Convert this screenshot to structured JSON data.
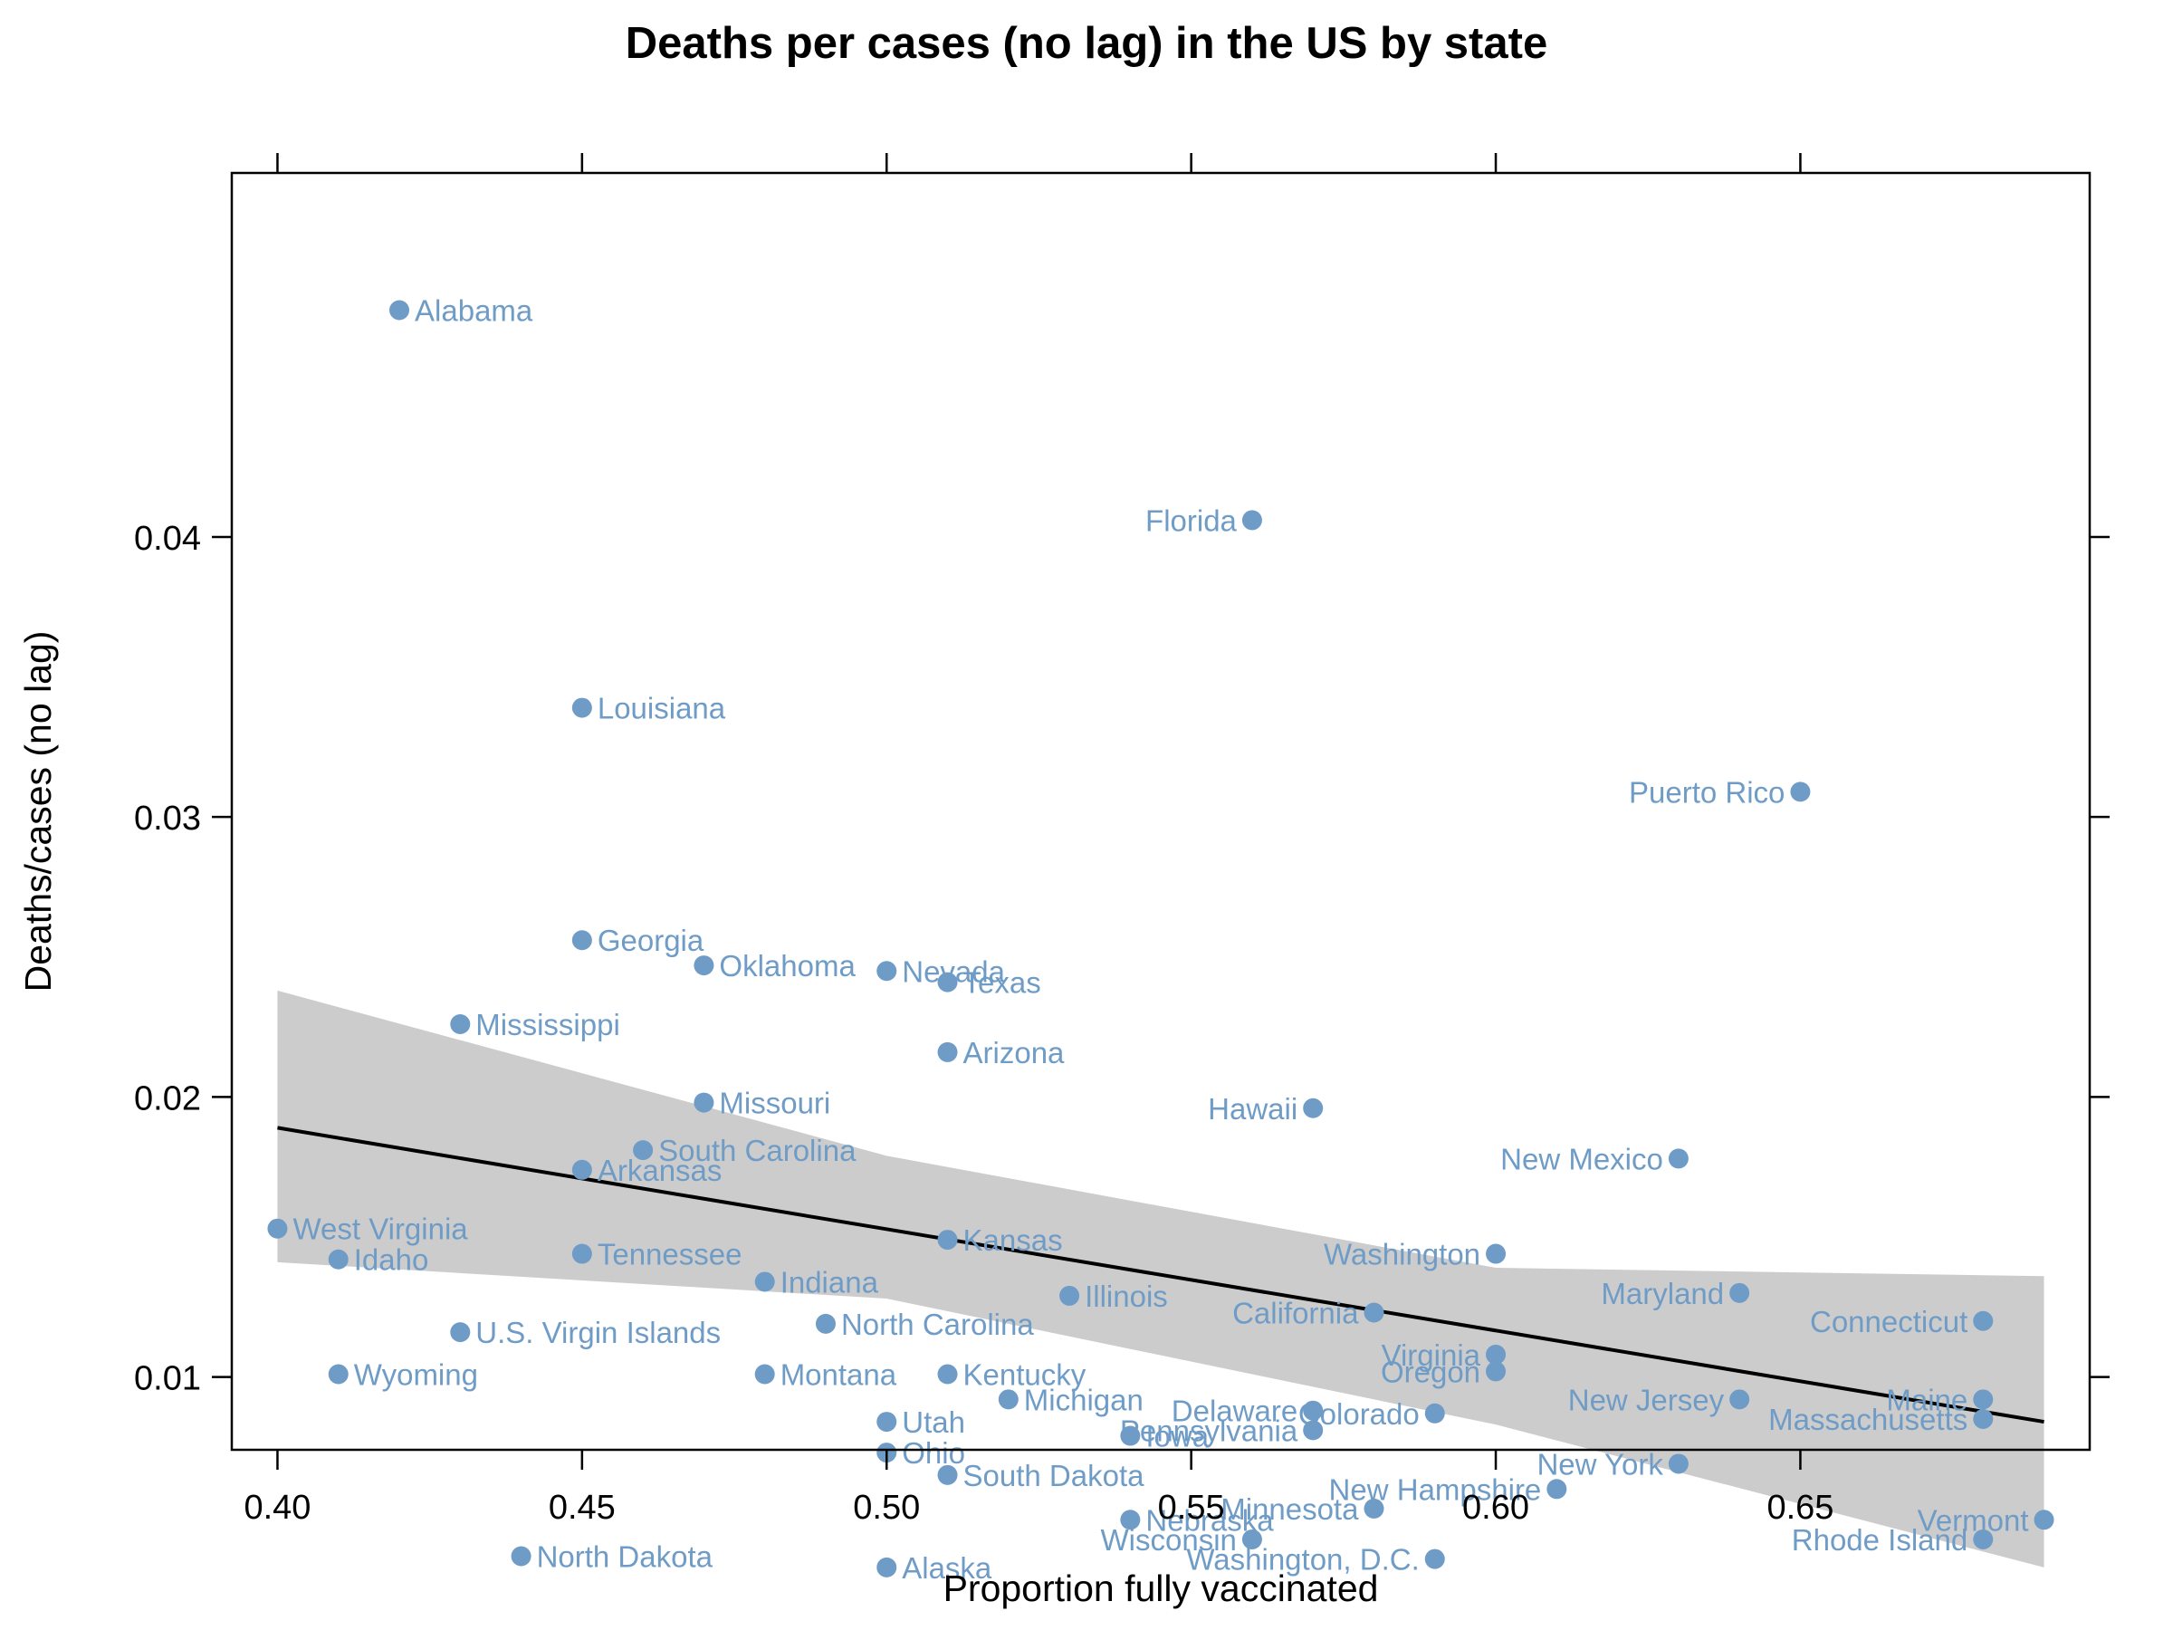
{
  "chart_data": {
    "type": "scatter",
    "title": "Deaths per cases (no lag) in the US by state",
    "xlabel": "Proportion fully vaccinated",
    "ylabel": "Deaths/cases (no lag)",
    "xlim": [
      0.3925,
      0.6975
    ],
    "ylim": [
      0.0074,
      0.053
    ],
    "x_ticks": [
      0.4,
      0.45,
      0.5,
      0.55,
      0.6,
      0.65
    ],
    "x_tick_labels": [
      "0.40",
      "0.45",
      "0.50",
      "0.55",
      "0.60",
      "0.65"
    ],
    "y_ticks": [
      0.01,
      0.02,
      0.03,
      0.04
    ],
    "y_tick_labels": [
      "0.01",
      "0.02",
      "0.03",
      "0.04"
    ],
    "grid": false,
    "colors": {
      "points": "#6f9cc6",
      "band": "#cccccc",
      "line": "#000000"
    },
    "points": [
      {
        "label": "Alabama",
        "x": 0.42,
        "y": 0.0481,
        "side": "right"
      },
      {
        "label": "Florida",
        "x": 0.56,
        "y": 0.0406,
        "side": "left"
      },
      {
        "label": "Louisiana",
        "x": 0.45,
        "y": 0.0339,
        "side": "right"
      },
      {
        "label": "Puerto Rico",
        "x": 0.65,
        "y": 0.0309,
        "side": "left"
      },
      {
        "label": "Georgia",
        "x": 0.45,
        "y": 0.0256,
        "side": "right"
      },
      {
        "label": "Oklahoma",
        "x": 0.47,
        "y": 0.0247,
        "side": "right"
      },
      {
        "label": "Nevada",
        "x": 0.5,
        "y": 0.0245,
        "side": "right"
      },
      {
        "label": "Texas",
        "x": 0.51,
        "y": 0.0241,
        "side": "right"
      },
      {
        "label": "Mississippi",
        "x": 0.43,
        "y": 0.0226,
        "side": "right"
      },
      {
        "label": "Arizona",
        "x": 0.51,
        "y": 0.0216,
        "side": "right"
      },
      {
        "label": "Missouri",
        "x": 0.47,
        "y": 0.0198,
        "side": "right"
      },
      {
        "label": "Hawaii",
        "x": 0.57,
        "y": 0.0196,
        "side": "left"
      },
      {
        "label": "South Carolina",
        "x": 0.46,
        "y": 0.0181,
        "side": "right"
      },
      {
        "label": "New Mexico",
        "x": 0.63,
        "y": 0.0178,
        "side": "left"
      },
      {
        "label": "Arkansas",
        "x": 0.45,
        "y": 0.0174,
        "side": "right"
      },
      {
        "label": "West Virginia",
        "x": 0.4,
        "y": 0.0153,
        "side": "right"
      },
      {
        "label": "Kansas",
        "x": 0.51,
        "y": 0.0149,
        "side": "right"
      },
      {
        "label": "Washington",
        "x": 0.6,
        "y": 0.0144,
        "side": "left"
      },
      {
        "label": "Tennessee",
        "x": 0.45,
        "y": 0.0144,
        "side": "right"
      },
      {
        "label": "Idaho",
        "x": 0.41,
        "y": 0.0142,
        "side": "right"
      },
      {
        "label": "Indiana",
        "x": 0.48,
        "y": 0.0134,
        "side": "right"
      },
      {
        "label": "Maryland",
        "x": 0.64,
        "y": 0.013,
        "side": "left"
      },
      {
        "label": "Illinois",
        "x": 0.53,
        "y": 0.0129,
        "side": "right"
      },
      {
        "label": "California",
        "x": 0.58,
        "y": 0.0123,
        "side": "left"
      },
      {
        "label": "Connecticut",
        "x": 0.68,
        "y": 0.012,
        "side": "left"
      },
      {
        "label": "North Carolina",
        "x": 0.49,
        "y": 0.0119,
        "side": "right"
      },
      {
        "label": "U.S. Virgin Islands",
        "x": 0.43,
        "y": 0.0116,
        "side": "right"
      },
      {
        "label": "Virginia",
        "x": 0.6,
        "y": 0.0108,
        "side": "left"
      },
      {
        "label": "Oregon",
        "x": 0.6,
        "y": 0.0102,
        "side": "left"
      },
      {
        "label": "Wyoming",
        "x": 0.41,
        "y": 0.0101,
        "side": "right"
      },
      {
        "label": "Montana",
        "x": 0.48,
        "y": 0.0101,
        "side": "right"
      },
      {
        "label": "Kentucky",
        "x": 0.51,
        "y": 0.0101,
        "side": "right"
      },
      {
        "label": "Michigan",
        "x": 0.52,
        "y": 0.0092,
        "side": "right"
      },
      {
        "label": "New Jersey",
        "x": 0.64,
        "y": 0.0092,
        "side": "left"
      },
      {
        "label": "Maine",
        "x": 0.68,
        "y": 0.0092,
        "side": "left"
      },
      {
        "label": "Delaware",
        "x": 0.57,
        "y": 0.0088,
        "side": "left"
      },
      {
        "label": "Colorado",
        "x": 0.59,
        "y": 0.0087,
        "side": "left"
      },
      {
        "label": "Massachusetts",
        "x": 0.68,
        "y": 0.0085,
        "side": "left"
      },
      {
        "label": "Utah",
        "x": 0.5,
        "y": 0.0084,
        "side": "right"
      },
      {
        "label": "Pennsylvania",
        "x": 0.57,
        "y": 0.0081,
        "side": "left"
      },
      {
        "label": "Iowa",
        "x": 0.54,
        "y": 0.0079,
        "side": "right"
      },
      {
        "label": "Ohio",
        "x": 0.5,
        "y": 0.0073,
        "side": "right"
      },
      {
        "label": "New York",
        "x": 0.63,
        "y": 0.0069,
        "side": "left"
      },
      {
        "label": "South Dakota",
        "x": 0.51,
        "y": 0.0065,
        "side": "right"
      },
      {
        "label": "New Hampshire",
        "x": 0.61,
        "y": 0.006,
        "side": "left"
      },
      {
        "label": "Minnesota",
        "x": 0.58,
        "y": 0.0053,
        "side": "left"
      },
      {
        "label": "Nebraska",
        "x": 0.54,
        "y": 0.0049,
        "side": "right"
      },
      {
        "label": "Vermont",
        "x": 0.69,
        "y": 0.0049,
        "side": "left"
      },
      {
        "label": "Wisconsin",
        "x": 0.56,
        "y": 0.0042,
        "side": "left"
      },
      {
        "label": "Rhode Island",
        "x": 0.68,
        "y": 0.0042,
        "side": "left"
      },
      {
        "label": "North Dakota",
        "x": 0.44,
        "y": 0.0036,
        "side": "right"
      },
      {
        "label": "Washington, D.C.",
        "x": 0.59,
        "y": 0.0035,
        "side": "left"
      },
      {
        "label": "Alaska",
        "x": 0.5,
        "y": 0.0032,
        "side": "right"
      }
    ],
    "fit_line": {
      "x": [
        0.4,
        0.69
      ],
      "y": [
        0.0189,
        0.0084
      ]
    },
    "confidence_band": {
      "x": [
        0.4,
        0.5,
        0.6,
        0.69
      ],
      "lower": [
        0.0141,
        0.0128,
        0.0083,
        0.0032
      ],
      "upper": [
        0.0238,
        0.0179,
        0.0139,
        0.0136
      ]
    }
  }
}
